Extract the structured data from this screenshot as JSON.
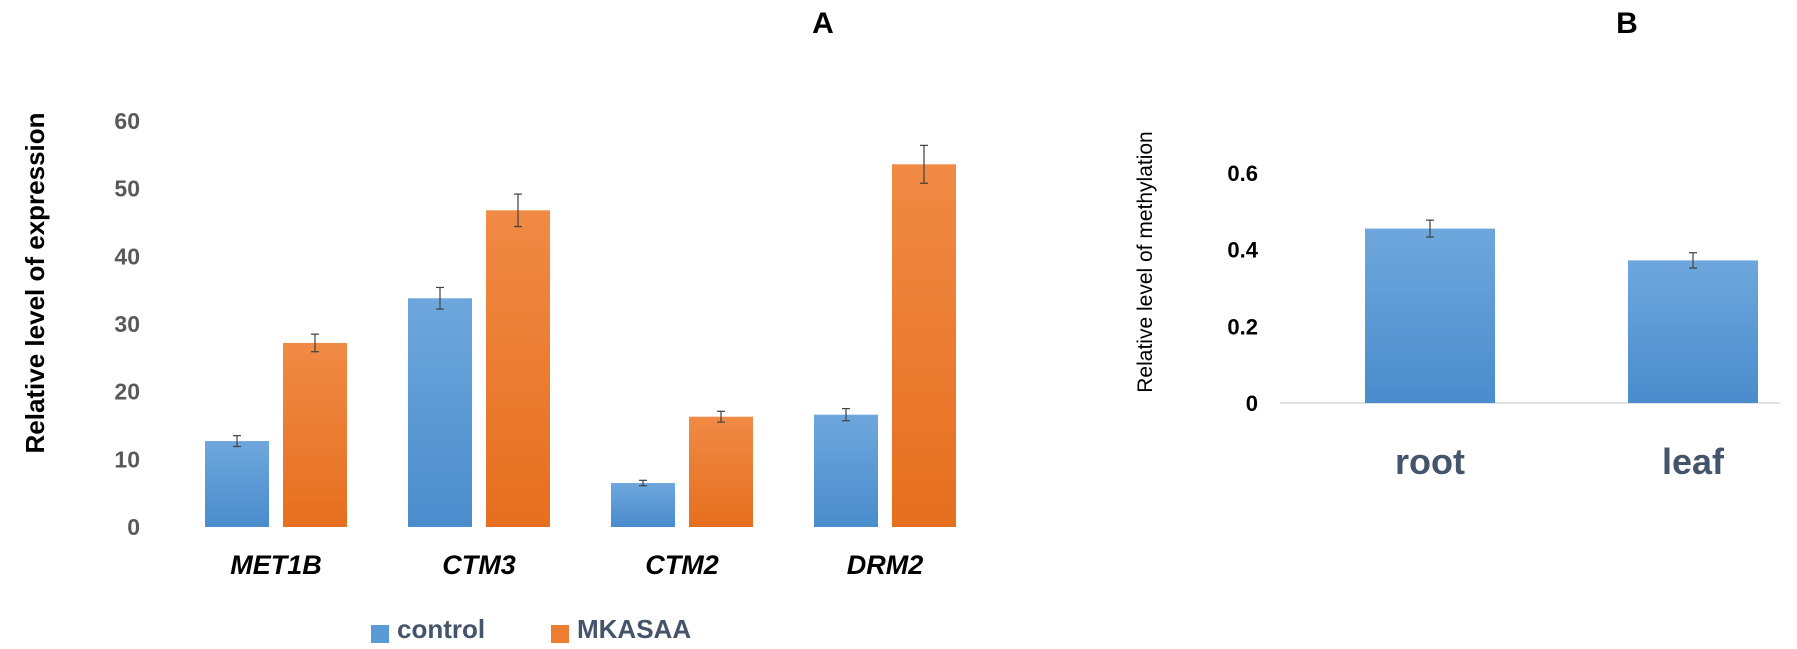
{
  "colors": {
    "control": "#5b9bd5",
    "treatment": "#ed7d31"
  },
  "chart_data": [
    {
      "panel": "A",
      "type": "bar",
      "title": "A",
      "ylabel": "Relative level of expression",
      "xlabel": "",
      "ylim": [
        0,
        60
      ],
      "yticks": [
        "0",
        "10",
        "20",
        "30",
        "40",
        "50",
        "60"
      ],
      "categories": [
        "MET1B",
        "CTM3",
        "CTM2",
        "DRM2"
      ],
      "series": [
        {
          "name": "control",
          "values": [
            12.7,
            33.8,
            6.5,
            16.6
          ],
          "errors": [
            0.8,
            1.6,
            0.4,
            0.9
          ]
        },
        {
          "name": "MKASAA",
          "values": [
            27.2,
            46.8,
            16.3,
            53.6
          ],
          "errors": [
            1.3,
            2.4,
            0.8,
            2.8
          ]
        }
      ],
      "legend": {
        "position": "bottom",
        "entries": [
          "control",
          "MKASAA"
        ]
      },
      "grid": false
    },
    {
      "panel": "B",
      "type": "bar",
      "title": "B",
      "ylabel": "Relative level of methylation",
      "xlabel": "",
      "ylim": [
        0,
        0.7
      ],
      "yticks": [
        "0",
        "0.2",
        "0.4",
        "0.6"
      ],
      "categories": [
        "root",
        "leaf"
      ],
      "values": [
        0.455,
        0.372
      ],
      "errors": [
        0.022,
        0.02
      ],
      "grid": false
    }
  ]
}
